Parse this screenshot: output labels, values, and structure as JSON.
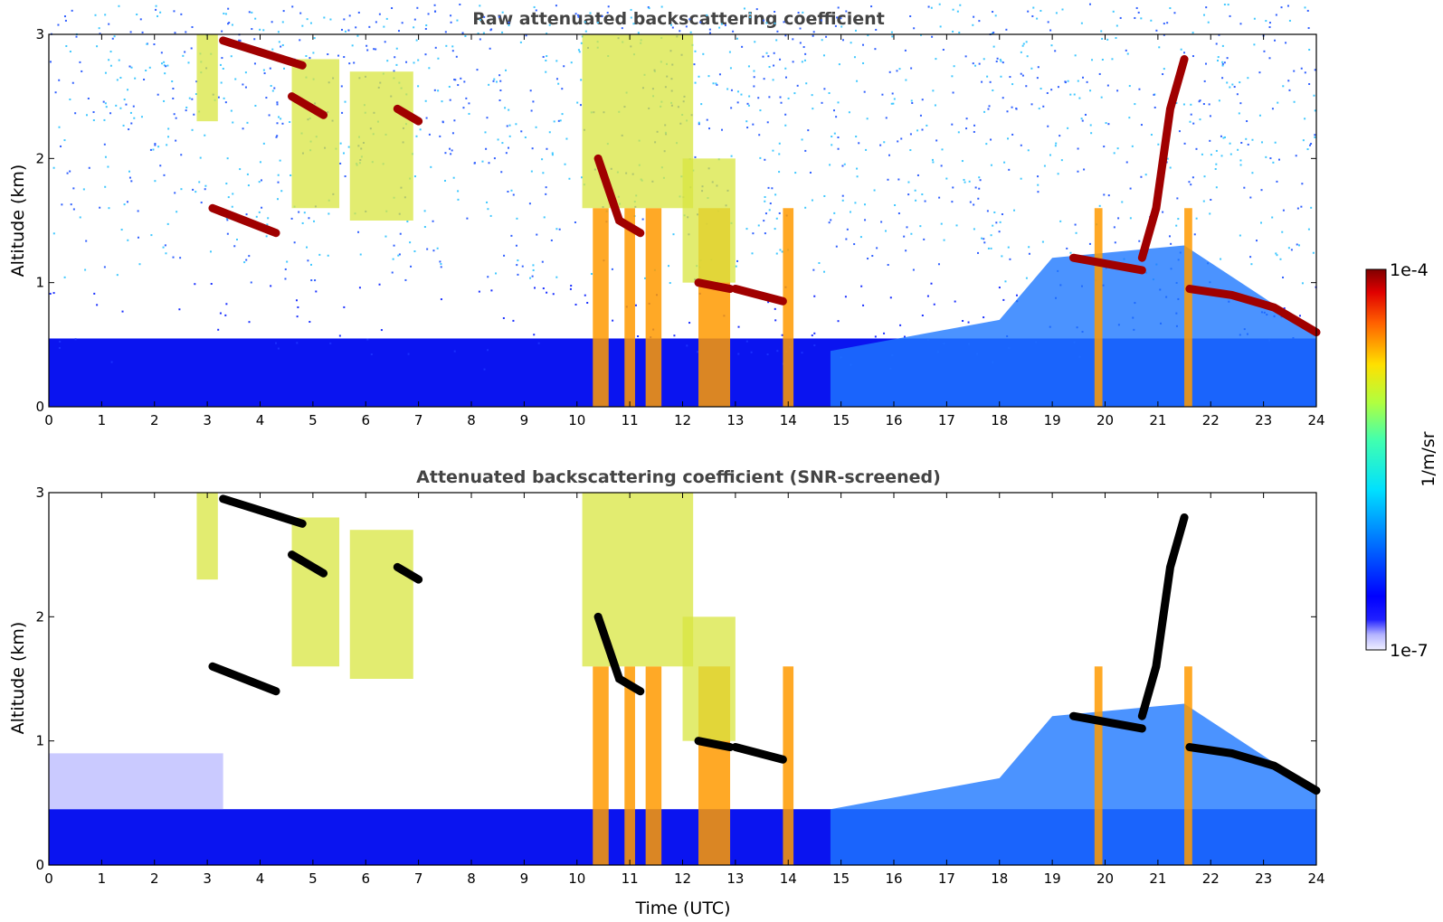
{
  "chart_data": [
    {
      "type": "heatmap",
      "title": "Raw attenuated backscattering coefficient",
      "xlabel": "",
      "ylabel": "Altitude (km)",
      "xlim": [
        0,
        24
      ],
      "ylim": [
        0,
        3
      ],
      "xticks": [
        "0",
        "1",
        "2",
        "3",
        "4",
        "5",
        "6",
        "7",
        "8",
        "9",
        "10",
        "11",
        "12",
        "13",
        "14",
        "15",
        "16",
        "17",
        "18",
        "19",
        "20",
        "21",
        "22",
        "23",
        "24"
      ],
      "yticks": [
        "0",
        "1",
        "2",
        "3"
      ],
      "screened": false,
      "features": [
        {
          "kind": "cloud_base",
          "t0": 3.1,
          "t1": 4.3,
          "alt": [
            1.6,
            1.5,
            1.4
          ]
        },
        {
          "kind": "cloud_base",
          "t0": 3.3,
          "t1": 4.8,
          "alt": [
            2.95,
            2.85,
            2.75
          ]
        },
        {
          "kind": "cloud_base",
          "t0": 4.6,
          "t1": 5.2,
          "alt": [
            2.5,
            2.35
          ]
        },
        {
          "kind": "cloud_base",
          "t0": 6.6,
          "t1": 7.0,
          "alt": [
            2.4,
            2.3
          ]
        },
        {
          "kind": "cloud_base",
          "t0": 10.4,
          "t1": 11.2,
          "alt": [
            2.0,
            1.5,
            1.4
          ]
        },
        {
          "kind": "cloud_base",
          "t0": 12.3,
          "t1": 12.9,
          "alt": [
            1.0,
            0.95
          ]
        },
        {
          "kind": "cloud_base",
          "t0": 13.0,
          "t1": 13.9,
          "alt": [
            0.95,
            0.9,
            0.85
          ]
        },
        {
          "kind": "cloud_base",
          "t0": 19.4,
          "t1": 20.7,
          "alt": [
            1.2,
            1.15,
            1.1
          ]
        },
        {
          "kind": "cloud_base",
          "t0": 20.7,
          "t1": 21.5,
          "alt": [
            1.2,
            1.6,
            2.4,
            2.8
          ]
        },
        {
          "kind": "cloud_base",
          "t0": 21.6,
          "t1": 24.0,
          "alt": [
            0.95,
            0.9,
            0.8,
            0.6
          ]
        }
      ]
    },
    {
      "type": "heatmap",
      "title": "Attenuated backscattering coefficient (SNR-screened)",
      "xlabel": "Time (UTC)",
      "ylabel": "Altitude (km)",
      "xlim": [
        0,
        24
      ],
      "ylim": [
        0,
        3
      ],
      "xticks": [
        "0",
        "1",
        "2",
        "3",
        "4",
        "5",
        "6",
        "7",
        "8",
        "9",
        "10",
        "11",
        "12",
        "13",
        "14",
        "15",
        "16",
        "17",
        "18",
        "19",
        "20",
        "21",
        "22",
        "23",
        "24"
      ],
      "yticks": [
        "0",
        "1",
        "2",
        "3"
      ],
      "screened": true
    }
  ],
  "colorbar": {
    "label": "1/m/sr",
    "max_label": "1e-4",
    "min_label": "1e-7",
    "scale": "log",
    "range": [
      1e-07,
      0.0001
    ],
    "colormap": "jet",
    "saturated_color": "#000000"
  }
}
